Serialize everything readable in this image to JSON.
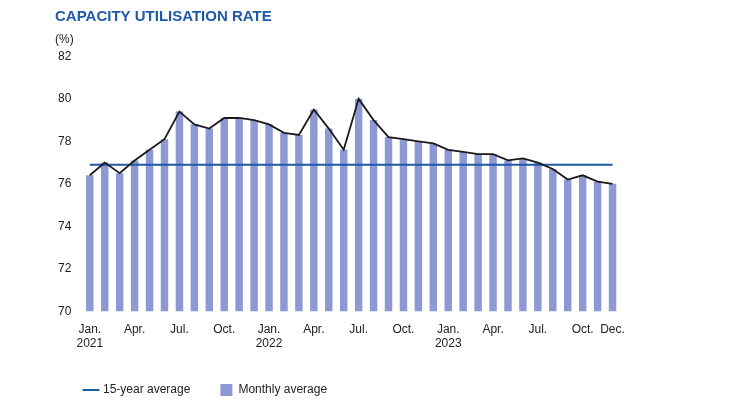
{
  "chart_data": {
    "type": "bar",
    "title": "CAPACITY UTILISATION RATE",
    "ylabel": "(%)",
    "categories": [
      "Jan.\n2021",
      null,
      null,
      "Apr.",
      null,
      null,
      "Jul.",
      null,
      null,
      "Oct.",
      null,
      null,
      "Jan.\n2022",
      null,
      null,
      "Apr.",
      null,
      null,
      "Jul.",
      null,
      null,
      "Oct.",
      null,
      null,
      "Jan.\n2023",
      null,
      null,
      "Apr.",
      null,
      null,
      "Jul.",
      null,
      null,
      "Oct.",
      null,
      "Dec."
    ],
    "series": [
      {
        "name": "Monthly average",
        "type": "bar",
        "color": "#8e98d3",
        "line_style": "solid",
        "values": [
          76.4,
          77.0,
          76.5,
          77.1,
          77.6,
          78.1,
          79.4,
          78.8,
          78.6,
          79.1,
          79.1,
          79.0,
          78.8,
          78.4,
          78.3,
          79.5,
          78.6,
          77.6,
          80.0,
          79.0,
          78.2,
          78.1,
          78.0,
          77.9,
          77.6,
          77.5,
          77.4,
          77.4,
          77.1,
          77.2,
          77.0,
          76.7,
          76.2,
          76.4,
          76.1,
          76.0
        ]
      },
      {
        "name": "15-year average",
        "type": "line",
        "color": "#1f5aa6",
        "values": [
          76.9,
          76.9,
          76.9,
          76.9,
          76.9,
          76.9,
          76.9,
          76.9,
          76.9,
          76.9,
          76.9,
          76.9,
          76.9,
          76.9,
          76.9,
          76.9,
          76.9,
          76.9,
          76.9,
          76.9,
          76.9,
          76.9,
          76.9,
          76.9,
          76.9,
          76.9,
          76.9,
          76.9,
          76.9,
          76.9,
          76.9,
          76.9,
          76.9,
          76.9,
          76.9,
          76.9
        ]
      }
    ],
    "ylim": [
      70,
      82
    ],
    "yticks": [
      70,
      72,
      74,
      76,
      78,
      80,
      82
    ],
    "grid": false,
    "legend": "bottom-left"
  }
}
